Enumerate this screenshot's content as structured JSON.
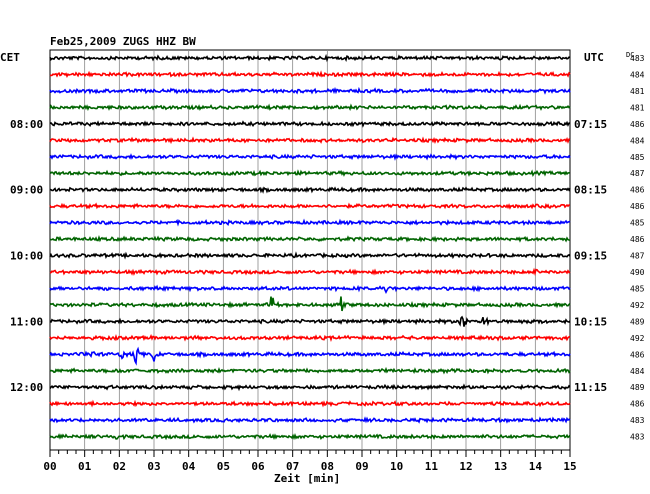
{
  "chart_data": {
    "type": "line",
    "title": "Feb25,2009   ZUGS HHZ BW",
    "left_timezone": "CET",
    "right_timezone": "UTC",
    "dc_label": "DC",
    "xlabel": "Zeit [min]",
    "x_ticks": [
      "00",
      "01",
      "02",
      "03",
      "04",
      "05",
      "06",
      "07",
      "08",
      "09",
      "10",
      "11",
      "12",
      "13",
      "14",
      "15"
    ],
    "xlim": [
      0,
      15
    ],
    "grid": true,
    "trace_colors": [
      "#000000",
      "#ff0000",
      "#0000ff",
      "#006400"
    ],
    "left_hour_labels": [
      {
        "trace": 4,
        "text": "08:00"
      },
      {
        "trace": 8,
        "text": "09:00"
      },
      {
        "trace": 12,
        "text": "10:00"
      },
      {
        "trace": 16,
        "text": "11:00"
      },
      {
        "trace": 20,
        "text": "12:00"
      }
    ],
    "right_hour_labels": [
      {
        "trace": 4,
        "text": "07:15"
      },
      {
        "trace": 8,
        "text": "08:15"
      },
      {
        "trace": 12,
        "text": "09:15"
      },
      {
        "trace": 16,
        "text": "10:15"
      },
      {
        "trace": 20,
        "text": "11:15"
      }
    ],
    "dc_values": [
      483,
      484,
      481,
      481,
      486,
      484,
      485,
      487,
      486,
      486,
      485,
      486,
      487,
      490,
      485,
      492,
      489,
      492,
      486,
      484,
      489,
      486,
      483,
      483
    ],
    "events": [
      {
        "trace": 13,
        "minute": 14.0,
        "amplitude": 4
      },
      {
        "trace": 14,
        "minute": 9.7,
        "amplitude": 3
      },
      {
        "trace": 15,
        "minute": 6.4,
        "amplitude": 16
      },
      {
        "trace": 15,
        "minute": 8.4,
        "amplitude": 8
      },
      {
        "trace": 16,
        "minute": 11.9,
        "amplitude": 9
      },
      {
        "trace": 16,
        "minute": 12.5,
        "amplitude": 9
      },
      {
        "trace": 18,
        "minute": 1.2,
        "amplitude": 6
      },
      {
        "trace": 18,
        "minute": 2.1,
        "amplitude": 5
      },
      {
        "trace": 18,
        "minute": 2.5,
        "amplitude": 12
      },
      {
        "trace": 18,
        "minute": 3.0,
        "amplitude": 7
      },
      {
        "trace": 19,
        "minute": 2.0,
        "amplitude": 2
      },
      {
        "trace": 23,
        "minute": 1.9,
        "amplitude": 3
      }
    ]
  }
}
